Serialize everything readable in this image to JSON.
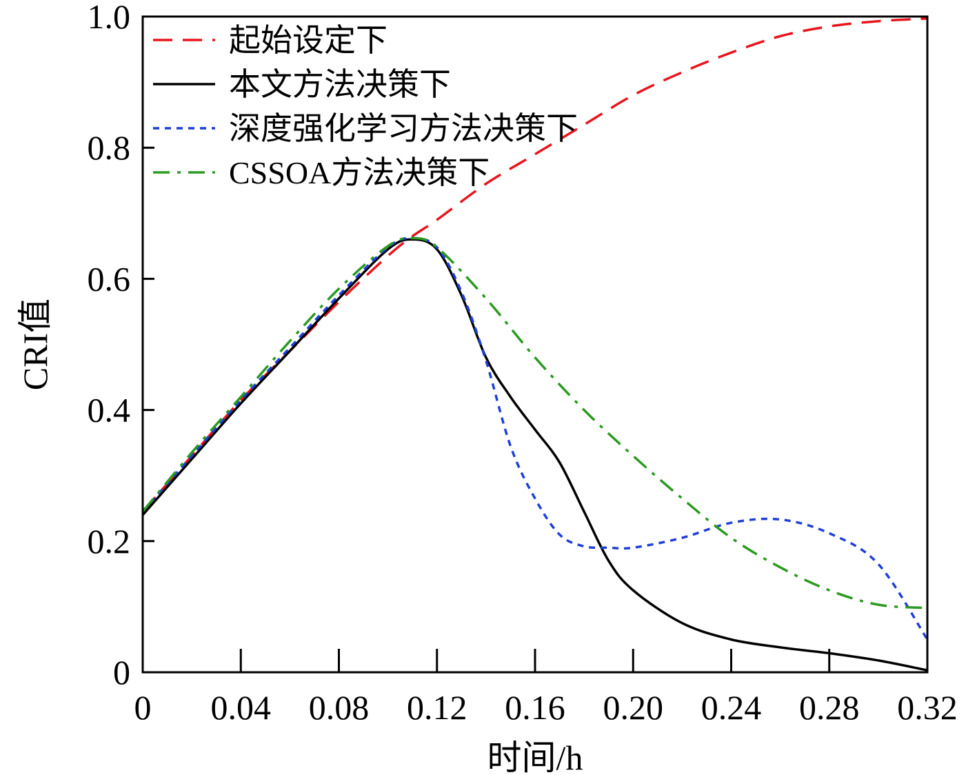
{
  "chart_data": {
    "type": "line",
    "title": "",
    "xlabel": "时间/h",
    "ylabel": "CRI值",
    "xlim": [
      0,
      0.32
    ],
    "ylim": [
      0,
      1.0
    ],
    "x_ticks": [
      0,
      0.04,
      0.08,
      0.12,
      0.16,
      0.2,
      0.24,
      0.28,
      0.32
    ],
    "x_tick_labels": [
      "0",
      "0.04",
      "0.08",
      "0.12",
      "0.16",
      "0.20",
      "0.24",
      "0.28",
      "0.32"
    ],
    "y_ticks": [
      0,
      0.2,
      0.4,
      0.6,
      0.8,
      1.0
    ],
    "y_tick_labels": [
      "0",
      "0.2",
      "0.4",
      "0.6",
      "0.8",
      "1.0"
    ],
    "grid": false,
    "legend_position": "top-left",
    "series": [
      {
        "name": "起始设定下",
        "color": "#e8141c",
        "style": "dashed",
        "x": [
          0,
          0.02,
          0.04,
          0.06,
          0.08,
          0.1,
          0.11,
          0.12,
          0.14,
          0.16,
          0.18,
          0.2,
          0.22,
          0.24,
          0.26,
          0.28,
          0.3,
          0.32
        ],
        "y": [
          0.245,
          0.33,
          0.415,
          0.49,
          0.565,
          0.635,
          0.665,
          0.69,
          0.745,
          0.79,
          0.835,
          0.88,
          0.915,
          0.945,
          0.97,
          0.985,
          0.993,
          0.997
        ]
      },
      {
        "name": "本文方法决策下",
        "color": "#000000",
        "style": "solid",
        "x": [
          0,
          0.02,
          0.04,
          0.06,
          0.08,
          0.1,
          0.11,
          0.12,
          0.13,
          0.14,
          0.15,
          0.16,
          0.17,
          0.18,
          0.19,
          0.2,
          0.22,
          0.24,
          0.26,
          0.28,
          0.3,
          0.32
        ],
        "y": [
          0.24,
          0.325,
          0.41,
          0.49,
          0.57,
          0.645,
          0.66,
          0.645,
          0.575,
          0.48,
          0.42,
          0.37,
          0.32,
          0.245,
          0.17,
          0.125,
          0.075,
          0.05,
          0.038,
          0.029,
          0.018,
          0.003
        ]
      },
      {
        "name": "深度强化学习方法决策下",
        "color": "#1f3fd8",
        "style": "dotted",
        "x": [
          0,
          0.02,
          0.04,
          0.06,
          0.08,
          0.1,
          0.11,
          0.12,
          0.13,
          0.14,
          0.15,
          0.16,
          0.17,
          0.18,
          0.19,
          0.2,
          0.22,
          0.24,
          0.26,
          0.28,
          0.3,
          0.32
        ],
        "y": [
          0.245,
          0.33,
          0.415,
          0.495,
          0.575,
          0.648,
          0.662,
          0.648,
          0.58,
          0.475,
          0.345,
          0.265,
          0.21,
          0.192,
          0.19,
          0.19,
          0.205,
          0.228,
          0.233,
          0.212,
          0.165,
          0.05
        ]
      },
      {
        "name": "CSSOA方法决策下",
        "color": "#2b9a1f",
        "style": "dashdot",
        "x": [
          0,
          0.02,
          0.04,
          0.06,
          0.08,
          0.1,
          0.11,
          0.12,
          0.14,
          0.16,
          0.18,
          0.2,
          0.22,
          0.24,
          0.26,
          0.28,
          0.3,
          0.32
        ],
        "y": [
          0.245,
          0.335,
          0.42,
          0.505,
          0.585,
          0.65,
          0.662,
          0.648,
          0.57,
          0.48,
          0.4,
          0.33,
          0.265,
          0.205,
          0.16,
          0.125,
          0.103,
          0.098
        ]
      }
    ]
  }
}
